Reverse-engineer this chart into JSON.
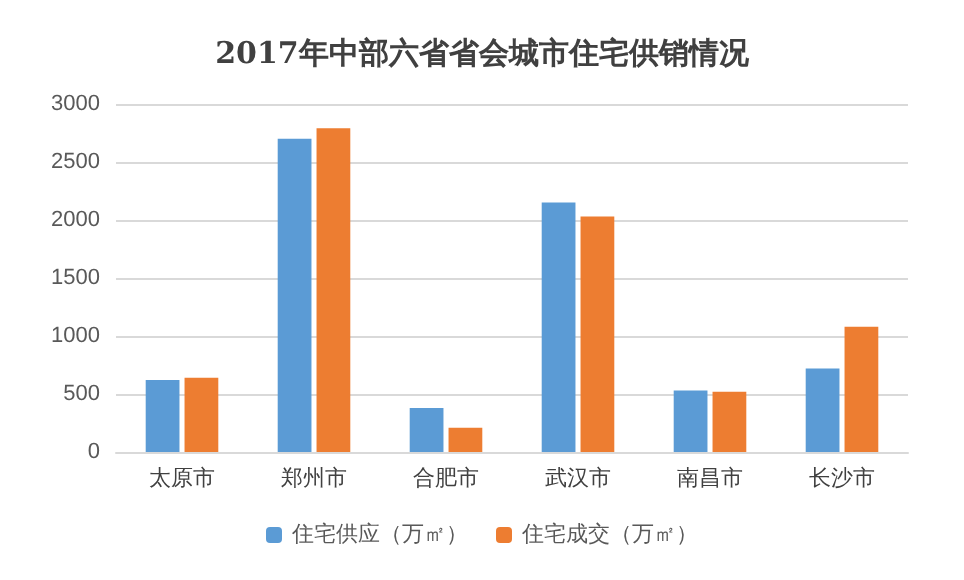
{
  "chart_data": {
    "type": "bar",
    "title": "2017年中部六省省会城市住宅供销情况",
    "categories": [
      "太原市",
      "郑州市",
      "合肥市",
      "武汉市",
      "南昌市",
      "长沙市"
    ],
    "series": [
      {
        "name": "住宅供应（万㎡）",
        "color": "#5b9bd5",
        "values": [
          620,
          2700,
          380,
          2150,
          530,
          720
        ]
      },
      {
        "name": "住宅成交（万㎡）",
        "color": "#ed7d31",
        "values": [
          640,
          2790,
          210,
          2030,
          520,
          1080
        ]
      }
    ],
    "ylim": [
      0,
      3000
    ],
    "yticks": [
      0,
      500,
      1000,
      1500,
      2000,
      2500,
      3000
    ],
    "grid": "y",
    "legend": "bottom"
  }
}
